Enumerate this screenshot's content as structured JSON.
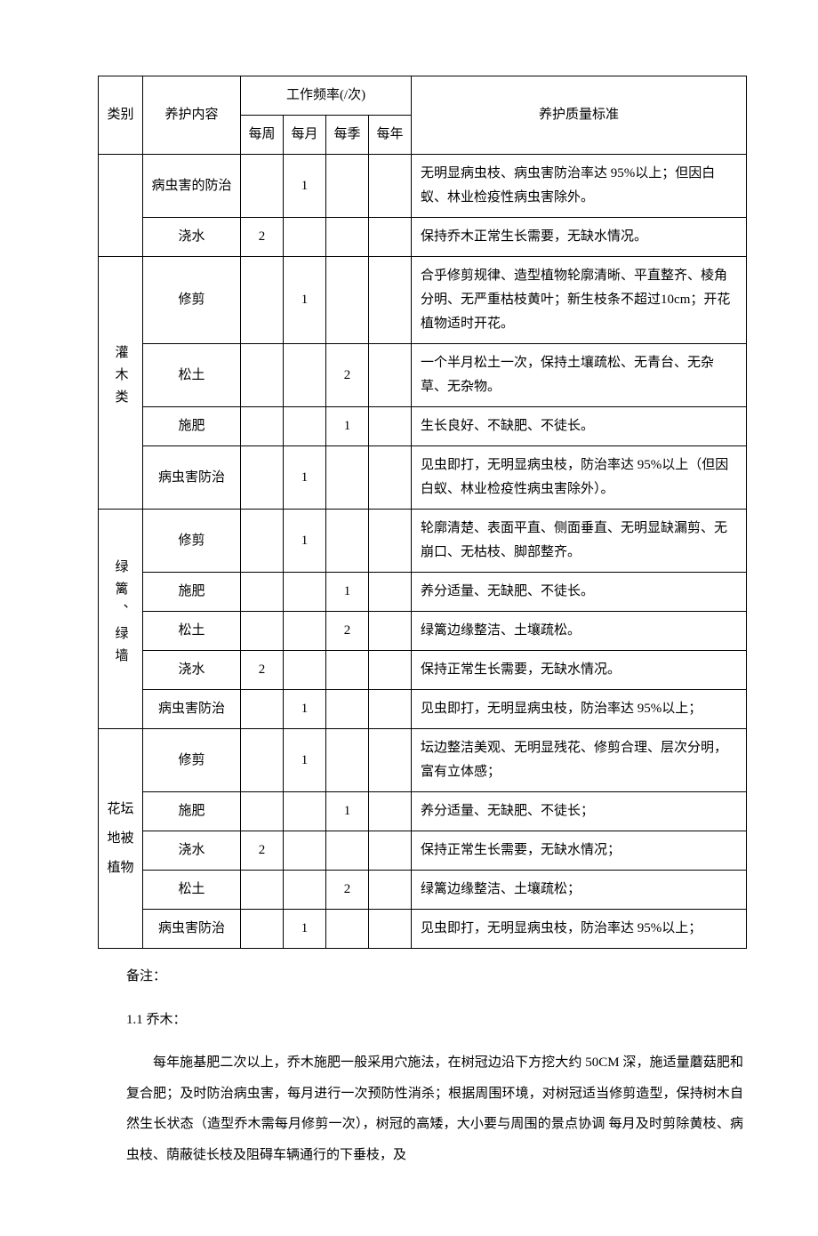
{
  "table": {
    "header": {
      "category": "类别",
      "content": "养护内容",
      "freq_group": "工作频率(/次)",
      "freq_week": "每周",
      "freq_month": "每月",
      "freq_quarter": "每季",
      "freq_year": "每年",
      "standard": "养护质量标准"
    },
    "groups": [
      {
        "category_label": "",
        "rows": [
          {
            "content": "病虫害的防治",
            "week": "",
            "month": "1",
            "quarter": "",
            "year": "",
            "standard": "无明显病虫枝、病虫害防治率达 95%以上；但因白蚁、林业检疫性病虫害除外。"
          },
          {
            "content": "浇水",
            "week": "2",
            "month": "",
            "quarter": "",
            "year": "",
            "standard": "保持乔木正常生长需要，无缺水情况。"
          }
        ]
      },
      {
        "category_label": "灌木类",
        "vertical": true,
        "rows": [
          {
            "content": "修剪",
            "week": "",
            "month": "1",
            "quarter": "",
            "year": "",
            "standard": "合乎修剪规律、造型植物轮廓清晰、平直整齐、棱角分明、无严重枯枝黄叶；新生枝条不超过10cm；开花植物适时开花。"
          },
          {
            "content": "松土",
            "week": "",
            "month": "",
            "quarter": "2",
            "year": "",
            "standard": "一个半月松土一次，保持土壤疏松、无青台、无杂草、无杂物。"
          },
          {
            "content": "施肥",
            "week": "",
            "month": "",
            "quarter": "1",
            "year": "",
            "standard": "生长良好、不缺肥、不徒长。"
          },
          {
            "content": "病虫害防治",
            "week": "",
            "month": "1",
            "quarter": "",
            "year": "",
            "standard": "见虫即打，无明显病虫枝，防治率达 95%以上（但因白蚁、林业检疫性病虫害除外）。"
          }
        ]
      },
      {
        "category_label": "绿篱、绿墙",
        "vertical": true,
        "rows": [
          {
            "content": "修剪",
            "week": "",
            "month": "1",
            "quarter": "",
            "year": "",
            "standard": "轮廓清楚、表面平直、侧面垂直、无明显缺漏剪、无崩口、无枯枝、脚部整齐。"
          },
          {
            "content": "施肥",
            "week": "",
            "month": "",
            "quarter": "1",
            "year": "",
            "standard": "养分适量、无缺肥、不徒长。"
          },
          {
            "content": "松土",
            "week": "",
            "month": "",
            "quarter": "2",
            "year": "",
            "standard": "绿篱边缘整洁、土壤疏松。"
          },
          {
            "content": "浇水",
            "week": "2",
            "month": "",
            "quarter": "",
            "year": "",
            "standard": "保持正常生长需要，无缺水情况。"
          },
          {
            "content": "病虫害防治",
            "week": "",
            "month": "1",
            "quarter": "",
            "year": "",
            "standard": "见虫即打，无明显病虫枝，防治率达 95%以上；"
          }
        ]
      },
      {
        "category_label_lines": [
          "花坛",
          "地被",
          "植物"
        ],
        "rows": [
          {
            "content": "修剪",
            "week": "",
            "month": "1",
            "quarter": "",
            "year": "",
            "standard": "坛边整洁美观、无明显残花、修剪合理、层次分明，富有立体感；"
          },
          {
            "content": "施肥",
            "week": "",
            "month": "",
            "quarter": "1",
            "year": "",
            "standard": "养分适量、无缺肥、不徒长；"
          },
          {
            "content": "浇水",
            "week": "2",
            "month": "",
            "quarter": "",
            "year": "",
            "standard": "保持正常生长需要，无缺水情况；"
          },
          {
            "content": "松土",
            "week": "",
            "month": "",
            "quarter": "2",
            "year": "",
            "standard": "绿篱边缘整洁、土壤疏松；"
          },
          {
            "content": "病虫害防治",
            "week": "",
            "month": "1",
            "quarter": "",
            "year": "",
            "standard": "见虫即打，无明显病虫枝，防治率达 95%以上；"
          }
        ]
      }
    ]
  },
  "notes": {
    "remark_label": "备注：",
    "section_1_title": "1.1 乔木：",
    "section_1_body": "每年施基肥二次以上，乔木施肥一般采用穴施法，在树冠边沿下方挖大约 50CM 深，施适量蘑菇肥和复合肥；及时防治病虫害，每月进行一次预防性消杀；根据周围环境，对树冠适当修剪造型，保持树木自然生长状态（造型乔木需每月修剪一次），树冠的高矮，大小要与周围的景点协调 每月及时剪除黄枝、病虫枝、荫蔽徒长枝及阻碍车辆通行的下垂枝，及"
  }
}
